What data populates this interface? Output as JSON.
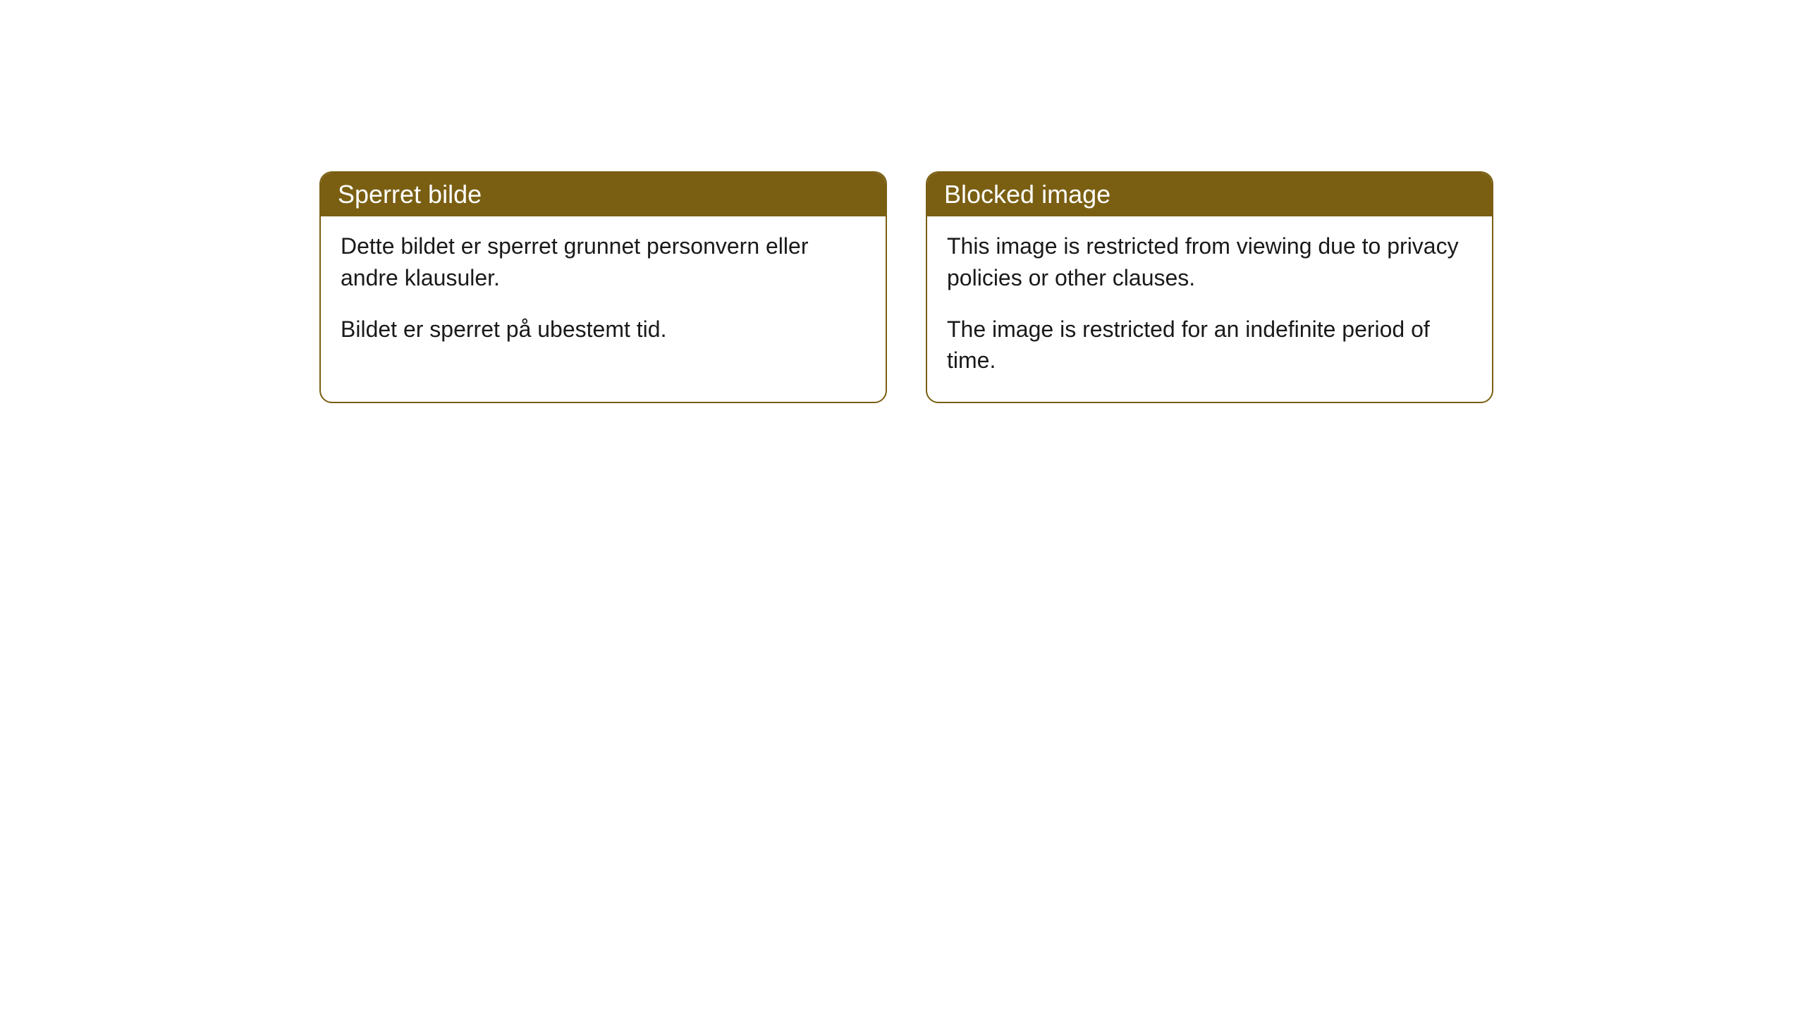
{
  "cards": [
    {
      "title": "Sperret bilde",
      "paragraph1": "Dette bildet er sperret grunnet personvern eller andre klausuler.",
      "paragraph2": "Bildet er sperret på ubestemt tid."
    },
    {
      "title": "Blocked image",
      "paragraph1": "This image is restricted from viewing due to privacy policies or other clauses.",
      "paragraph2": "The image is restricted for an indefinite period of time."
    }
  ],
  "styling": {
    "header_background_color": "#7a5f13",
    "header_text_color": "#ffffff",
    "border_color": "#7a5f13",
    "body_background_color": "#ffffff",
    "body_text_color": "#1a1a1a",
    "border_radius": 18,
    "header_fontsize": 36,
    "body_fontsize": 32
  }
}
